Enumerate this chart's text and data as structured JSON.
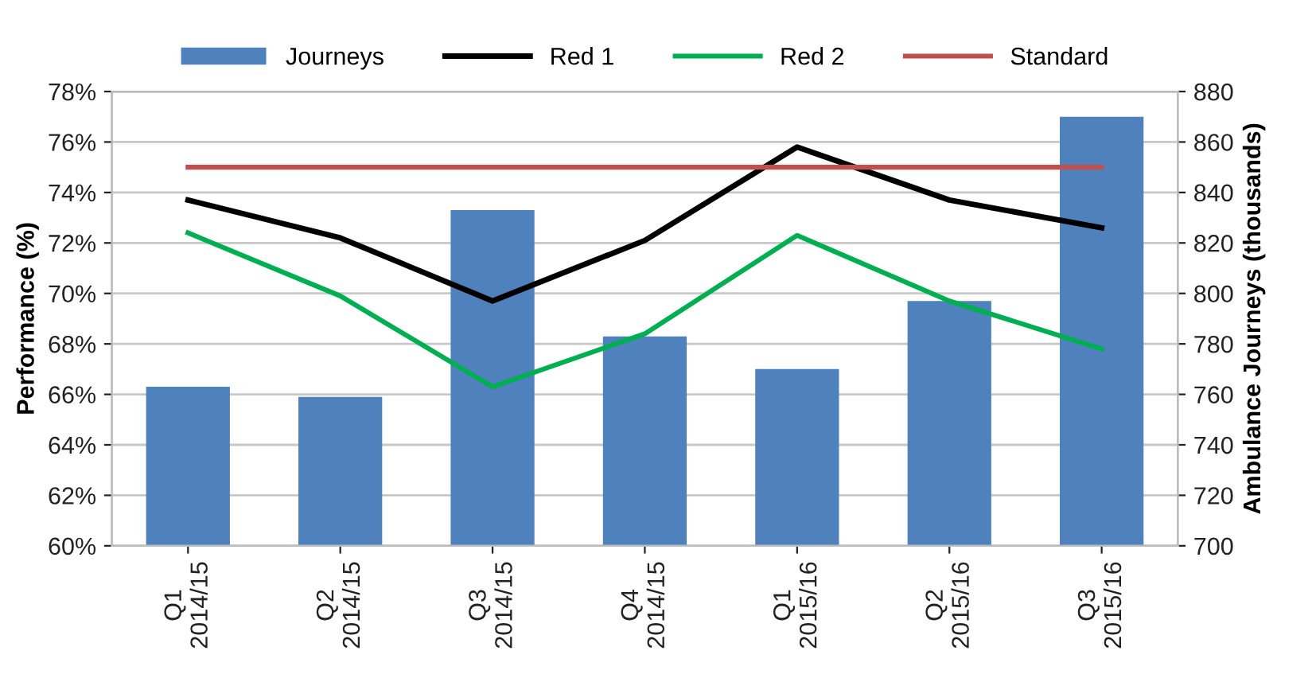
{
  "chart_data": {
    "type": "bar",
    "categories": [
      "Q1\n2014/15",
      "Q2\n2014/15",
      "Q3\n2014/15",
      "Q4\n2014/15",
      "Q1\n2015/16",
      "Q2\n2015/16",
      "Q3\n2015/16"
    ],
    "ylabel": "Performance (%)",
    "y2label": "Ambulance Journeys (thousands)",
    "series": [
      {
        "name": "Journeys",
        "axis": "y2",
        "color": "#4f81bd",
        "values": [
          763,
          759,
          833,
          783,
          770,
          797,
          870
        ]
      },
      {
        "name": "Red 1",
        "type": "line",
        "color": "#000000",
        "values": [
          73.7,
          72.2,
          69.7,
          72.1,
          75.8,
          73.7,
          72.6
        ]
      },
      {
        "name": "Red 2",
        "type": "line",
        "color": "#00b050",
        "values": [
          72.4,
          69.9,
          66.3,
          68.4,
          72.3,
          69.7,
          67.8
        ]
      },
      {
        "name": "Standard",
        "type": "line",
        "color": "#c0504d",
        "values": [
          75,
          75,
          75,
          75,
          75,
          75,
          75
        ]
      }
    ],
    "ylim": [
      60,
      78
    ],
    "yticks": [
      {
        "value": 60,
        "label": "60%"
      },
      {
        "value": 62,
        "label": "62%"
      },
      {
        "value": 64,
        "label": "64%"
      },
      {
        "value": 66,
        "label": "66%"
      },
      {
        "value": 68,
        "label": "68%"
      },
      {
        "value": 70,
        "label": "70%"
      },
      {
        "value": 72,
        "label": "72%"
      },
      {
        "value": 74,
        "label": "74%"
      },
      {
        "value": 76,
        "label": "76%"
      },
      {
        "value": 78,
        "label": "78%"
      }
    ],
    "y2lim": [
      700,
      880
    ],
    "y2ticks": [
      700,
      720,
      740,
      760,
      780,
      800,
      820,
      840,
      860,
      880
    ],
    "grid": "y",
    "legend": "top",
    "marker": "none",
    "line_style": "solid"
  }
}
